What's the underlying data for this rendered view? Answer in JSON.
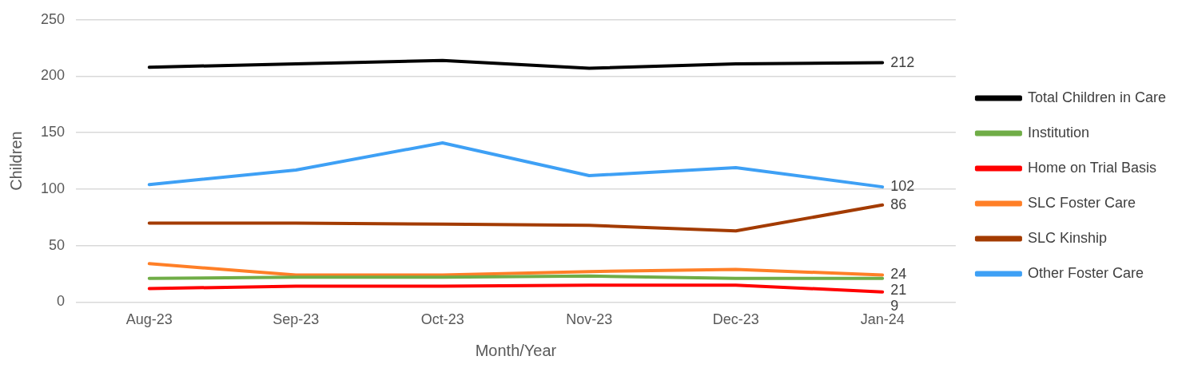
{
  "chart_data": {
    "type": "line",
    "xlabel": "Month/Year",
    "ylabel": "Children",
    "categories": [
      "Aug-23",
      "Sep-23",
      "Oct-23",
      "Nov-23",
      "Dec-23",
      "Jan-24"
    ],
    "ylim": [
      0,
      250
    ],
    "yticks": [
      0,
      50,
      100,
      150,
      200,
      250
    ],
    "grid": "y",
    "legend": "right",
    "marker": "none",
    "line_style": "solid",
    "series": [
      {
        "name": "Total Children in Care",
        "color": "#000000",
        "values": [
          208,
          211,
          214,
          207,
          211,
          212
        ],
        "value_labels": [
          null,
          null,
          null,
          null,
          null,
          "212"
        ]
      },
      {
        "name": "Institution",
        "color": "#70ad47",
        "values": [
          21,
          22,
          22,
          23,
          21,
          21
        ],
        "value_labels": [
          null,
          null,
          null,
          null,
          null,
          "21"
        ]
      },
      {
        "name": "Home on Trial Basis",
        "color": "#ff0000",
        "values": [
          12,
          14,
          14,
          15,
          15,
          9
        ],
        "value_labels": [
          null,
          null,
          null,
          null,
          null,
          "9"
        ]
      },
      {
        "name": "SLC Foster Care",
        "color": "#ff7f27",
        "values": [
          34,
          24,
          24,
          27,
          29,
          24
        ],
        "value_labels": [
          null,
          null,
          null,
          null,
          null,
          "24"
        ]
      },
      {
        "name": "SLC Kinship",
        "color": "#a33b00",
        "values": [
          70,
          70,
          69,
          68,
          63,
          86
        ],
        "value_labels": [
          null,
          null,
          null,
          null,
          null,
          "86"
        ]
      },
      {
        "name": "Other Foster Care",
        "color": "#3ea0f5",
        "values": [
          104,
          117,
          141,
          112,
          119,
          102
        ],
        "value_labels": [
          null,
          null,
          null,
          null,
          null,
          "102"
        ]
      }
    ]
  }
}
